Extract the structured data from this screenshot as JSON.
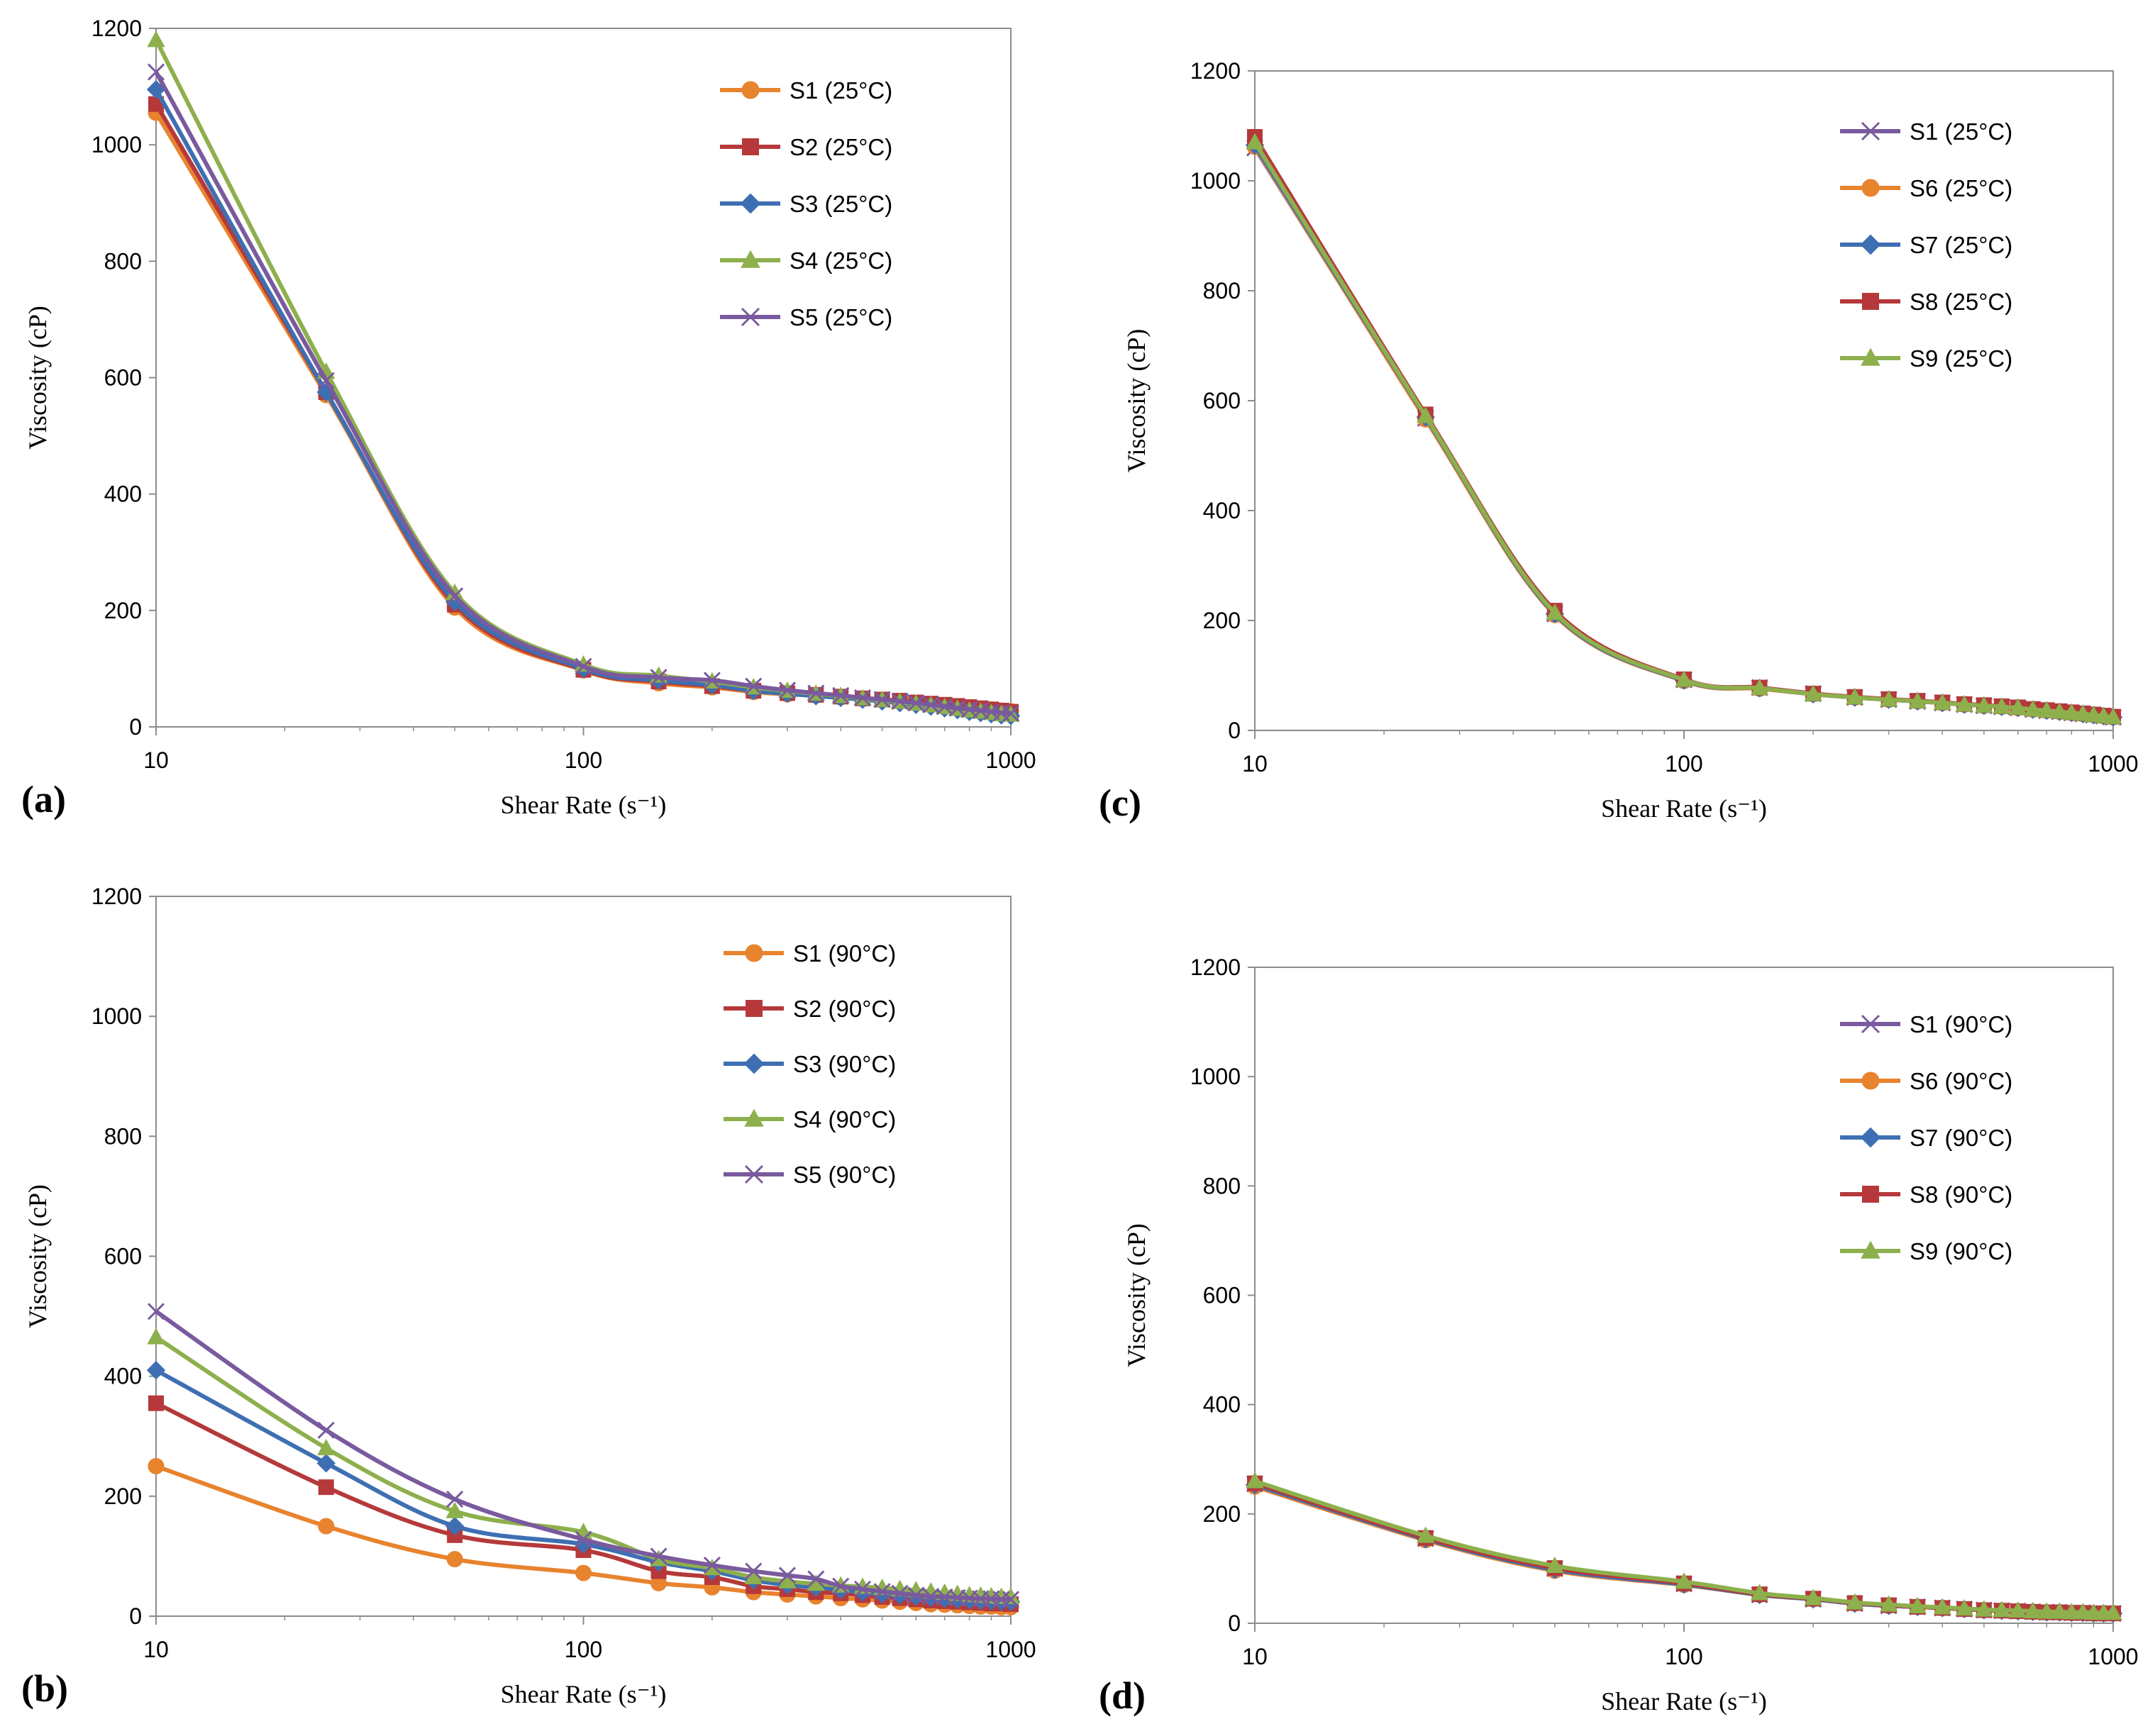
{
  "colors": {
    "orange": "#E8832E",
    "red": "#B5393A",
    "blue": "#3E6FB2",
    "green": "#8DB04D",
    "purple": "#7A5A9E"
  },
  "chart_data": [
    {
      "id": "a",
      "panel_label": "(a)",
      "type": "line",
      "xscale": "log",
      "xlabel": "Shear Rate (s⁻¹)",
      "ylabel": "Viscosity (cP)",
      "xlim": [
        10,
        1000
      ],
      "ylim": [
        0,
        1200
      ],
      "xticks": [
        "10",
        "100",
        "1000"
      ],
      "yticks": [
        "0",
        "200",
        "400",
        "600",
        "800",
        "1000",
        "1200"
      ],
      "legend": "top-right",
      "x": [
        10,
        25,
        50,
        100,
        150,
        200,
        250,
        300,
        350,
        400,
        450,
        500,
        550,
        600,
        650,
        700,
        750,
        800,
        850,
        900,
        950,
        1000
      ],
      "series": [
        {
          "name": "S1 (25°C)",
          "marker": "circle",
          "color": "orange",
          "values": [
            1055,
            570,
            205,
            97,
            75,
            68,
            60,
            56,
            54,
            51,
            48,
            46,
            44,
            41,
            39,
            37,
            35,
            33,
            31,
            30,
            28,
            27
          ]
        },
        {
          "name": "S2 (25°C)",
          "marker": "square",
          "color": "red",
          "values": [
            1070,
            575,
            210,
            98,
            78,
            70,
            62,
            58,
            55,
            52,
            49,
            47,
            45,
            42,
            40,
            38,
            36,
            34,
            32,
            30,
            28,
            26
          ]
        },
        {
          "name": "S3 (25°C)",
          "marker": "diamond",
          "color": "blue",
          "values": [
            1095,
            575,
            215,
            100,
            80,
            72,
            62,
            57,
            53,
            50,
            47,
            44,
            41,
            38,
            35,
            32,
            29,
            26,
            24,
            22,
            20,
            19
          ]
        },
        {
          "name": "S4 (25°C)",
          "marker": "triangle",
          "color": "green",
          "values": [
            1180,
            610,
            230,
            107,
            88,
            78,
            68,
            62,
            57,
            53,
            49,
            46,
            43,
            40,
            37,
            34,
            31,
            28,
            26,
            24,
            22,
            21
          ]
        },
        {
          "name": "S5 (25°C)",
          "marker": "x",
          "color": "purple",
          "values": [
            1125,
            595,
            225,
            104,
            85,
            80,
            70,
            63,
            58,
            54,
            50,
            47,
            44,
            41,
            38,
            35,
            32,
            30,
            28,
            26,
            24,
            23
          ]
        }
      ]
    },
    {
      "id": "c",
      "panel_label": "(c)",
      "type": "line",
      "xscale": "log",
      "xlabel": "Shear Rate (s⁻¹)",
      "ylabel": "Viscosity (cP)",
      "xlim": [
        10,
        1000
      ],
      "ylim": [
        0,
        1200
      ],
      "xticks": [
        "10",
        "100",
        "1000"
      ],
      "yticks": [
        "0",
        "200",
        "400",
        "600",
        "800",
        "1000",
        "1200"
      ],
      "legend": "top-right",
      "x": [
        10,
        25,
        50,
        100,
        150,
        200,
        250,
        300,
        350,
        400,
        450,
        500,
        550,
        600,
        650,
        700,
        750,
        800,
        850,
        900,
        950,
        1000
      ],
      "series": [
        {
          "name": "S1 (25°C)",
          "marker": "x",
          "color": "purple",
          "values": [
            1060,
            568,
            212,
            92,
            78,
            67,
            60,
            56,
            53,
            50,
            47,
            45,
            43,
            41,
            38,
            36,
            34,
            32,
            30,
            28,
            26,
            24
          ]
        },
        {
          "name": "S6 (25°C)",
          "marker": "circle",
          "color": "orange",
          "values": [
            1062,
            566,
            210,
            90,
            76,
            66,
            60,
            56,
            53,
            50,
            47,
            45,
            43,
            41,
            38,
            36,
            34,
            32,
            30,
            28,
            26,
            24
          ]
        },
        {
          "name": "S7 (25°C)",
          "marker": "diamond",
          "color": "blue",
          "values": [
            1065,
            570,
            212,
            91,
            77,
            66,
            60,
            56,
            53,
            50,
            47,
            45,
            43,
            41,
            38,
            36,
            34,
            32,
            30,
            28,
            26,
            24
          ]
        },
        {
          "name": "S8 (25°C)",
          "marker": "square",
          "color": "red",
          "values": [
            1080,
            575,
            218,
            93,
            78,
            67,
            61,
            57,
            54,
            51,
            48,
            46,
            44,
            42,
            39,
            37,
            35,
            33,
            31,
            29,
            27,
            25
          ]
        },
        {
          "name": "S9 (25°C)",
          "marker": "triangle",
          "color": "green",
          "values": [
            1070,
            572,
            214,
            92,
            77,
            66,
            60,
            56,
            53,
            50,
            47,
            45,
            43,
            41,
            38,
            36,
            34,
            32,
            30,
            28,
            26,
            24
          ]
        }
      ]
    },
    {
      "id": "b",
      "panel_label": "(b)",
      "type": "line",
      "xscale": "log",
      "xlabel": "Shear Rate (s⁻¹)",
      "ylabel": "Viscosity (cP)",
      "xlim": [
        10,
        1000
      ],
      "ylim": [
        0,
        1200
      ],
      "xticks": [
        "10",
        "100",
        "1000"
      ],
      "yticks": [
        "0",
        "200",
        "400",
        "600",
        "800",
        "1000",
        "1200"
      ],
      "legend": "top-right",
      "x": [
        10,
        25,
        50,
        100,
        150,
        200,
        250,
        300,
        350,
        400,
        450,
        500,
        550,
        600,
        650,
        700,
        750,
        800,
        850,
        900,
        950,
        1000
      ],
      "series": [
        {
          "name": "S1 (90°C)",
          "marker": "circle",
          "color": "orange",
          "values": [
            250,
            150,
            95,
            72,
            55,
            48,
            40,
            36,
            33,
            30,
            28,
            26,
            24,
            22,
            20,
            19,
            18,
            17,
            16,
            16,
            15,
            15
          ]
        },
        {
          "name": "S2 (90°C)",
          "marker": "square",
          "color": "red",
          "values": [
            355,
            215,
            135,
            110,
            75,
            65,
            50,
            45,
            40,
            38,
            35,
            32,
            30,
            28,
            26,
            25,
            24,
            23,
            22,
            21,
            21,
            20
          ]
        },
        {
          "name": "S3 (90°C)",
          "marker": "diamond",
          "color": "blue",
          "values": [
            410,
            255,
            150,
            120,
            90,
            75,
            60,
            52,
            48,
            44,
            40,
            37,
            35,
            33,
            31,
            29,
            28,
            27,
            26,
            25,
            24,
            24
          ]
        },
        {
          "name": "S4 (90°C)",
          "marker": "triangle",
          "color": "green",
          "values": [
            465,
            280,
            175,
            140,
            95,
            80,
            65,
            58,
            54,
            51,
            49,
            47,
            45,
            43,
            41,
            39,
            37,
            35,
            34,
            33,
            32,
            32
          ]
        },
        {
          "name": "S5 (90°C)",
          "marker": "x",
          "color": "purple",
          "values": [
            508,
            310,
            195,
            128,
            100,
            85,
            75,
            68,
            62,
            50,
            45,
            41,
            38,
            35,
            33,
            32,
            31,
            30,
            29,
            29,
            28,
            28
          ]
        }
      ]
    },
    {
      "id": "d",
      "panel_label": "(d)",
      "type": "line",
      "xscale": "log",
      "xlabel": "Shear Rate (s⁻¹)",
      "ylabel": "Viscosity (cP)",
      "xlim": [
        10,
        1000
      ],
      "ylim": [
        0,
        1200
      ],
      "xticks": [
        "10",
        "100",
        "1000"
      ],
      "yticks": [
        "0",
        "200",
        "400",
        "600",
        "800",
        "1000",
        "1200"
      ],
      "legend": "top-right",
      "x": [
        10,
        25,
        50,
        100,
        150,
        200,
        250,
        300,
        350,
        400,
        450,
        500,
        550,
        600,
        650,
        700,
        750,
        800,
        850,
        900,
        950,
        1000
      ],
      "series": [
        {
          "name": "S1 (90°C)",
          "marker": "x",
          "color": "purple",
          "values": [
            255,
            155,
            100,
            72,
            52,
            44,
            36,
            32,
            30,
            28,
            26,
            24,
            23,
            22,
            21,
            20,
            20,
            19,
            19,
            18,
            18,
            18
          ]
        },
        {
          "name": "S6 (90°C)",
          "marker": "circle",
          "color": "orange",
          "values": [
            250,
            152,
            96,
            70,
            52,
            44,
            36,
            32,
            30,
            28,
            26,
            24,
            23,
            22,
            21,
            20,
            20,
            19,
            19,
            18,
            18,
            18
          ]
        },
        {
          "name": "S7 (90°C)",
          "marker": "diamond",
          "color": "blue",
          "values": [
            253,
            154,
            98,
            71,
            52,
            44,
            36,
            32,
            30,
            28,
            26,
            24,
            23,
            22,
            21,
            20,
            20,
            19,
            19,
            18,
            18,
            18
          ]
        },
        {
          "name": "S8 (90°C)",
          "marker": "square",
          "color": "red",
          "values": [
            256,
            156,
            101,
            73,
            53,
            45,
            37,
            33,
            30,
            28,
            26,
            24,
            23,
            22,
            21,
            20,
            20,
            19,
            19,
            18,
            18,
            18
          ]
        },
        {
          "name": "S9 (90°C)",
          "marker": "triangle",
          "color": "green",
          "values": [
            260,
            160,
            105,
            76,
            55,
            46,
            38,
            34,
            31,
            29,
            27,
            25,
            24,
            23,
            22,
            21,
            21,
            20,
            20,
            19,
            19,
            19
          ]
        }
      ]
    }
  ]
}
